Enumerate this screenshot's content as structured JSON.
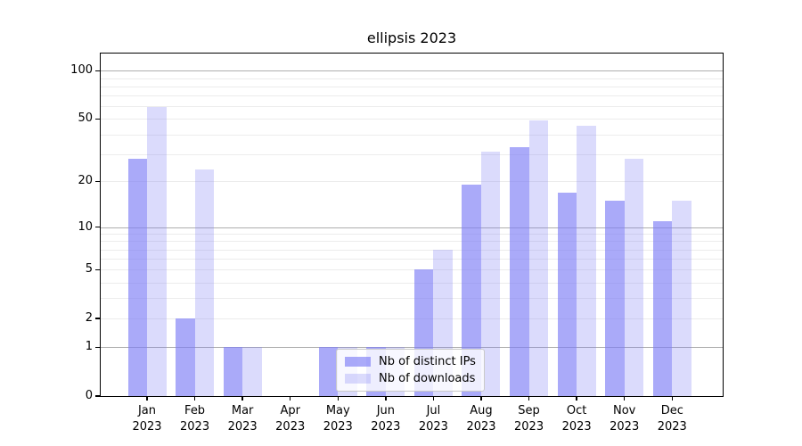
{
  "title": "ellipsis 2023",
  "legend": {
    "items": [
      {
        "label": "Nb of distinct IPs"
      },
      {
        "label": "Nb of downloads"
      }
    ]
  },
  "chart_data": {
    "type": "bar",
    "title": "ellipsis 2023",
    "categories": [
      "Jan",
      "Feb",
      "Mar",
      "Apr",
      "May",
      "Jun",
      "Jul",
      "Aug",
      "Sep",
      "Oct",
      "Nov",
      "Dec"
    ],
    "year": "2023",
    "series": [
      {
        "name": "Nb of distinct IPs",
        "values": [
          28,
          2,
          1,
          0,
          1,
          1,
          5,
          19,
          33,
          17,
          15,
          11
        ]
      },
      {
        "name": "Nb of downloads",
        "values": [
          59,
          24,
          1,
          0,
          1,
          1,
          7,
          31,
          49,
          45,
          28,
          15
        ]
      }
    ],
    "colors": [
      "rgba(124,124,246,0.65)",
      "rgba(124,124,246,0.28)"
    ],
    "yscale": "log10(1+y)",
    "ymax_display": 128,
    "yticks": [
      0,
      1,
      2,
      5,
      10,
      20,
      50,
      100
    ],
    "grid": {
      "minor": [
        2,
        3,
        4,
        5,
        6,
        7,
        8,
        9,
        20,
        30,
        40,
        50,
        60,
        70,
        80,
        90
      ],
      "major": [
        1,
        10,
        100
      ]
    },
    "legend_position": "lower center",
    "xlabel": "",
    "ylabel": ""
  }
}
